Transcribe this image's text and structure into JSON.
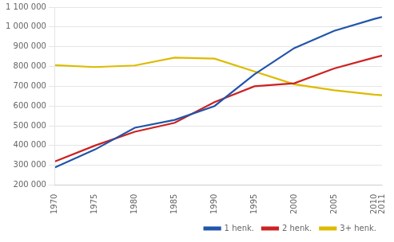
{
  "chart_data": {
    "type": "line",
    "x": [
      1970,
      1975,
      1980,
      1985,
      1990,
      1995,
      2000,
      2005,
      2010,
      2011
    ],
    "series": [
      {
        "name": "1 henk.",
        "color": "#2255aa",
        "values": [
          290000,
          380000,
          490000,
          530000,
          600000,
          760000,
          893000,
          980000,
          1040000,
          1050000
        ]
      },
      {
        "name": "2 henk.",
        "color": "#cc2222",
        "values": [
          320000,
          400000,
          470000,
          515000,
          620000,
          700000,
          715000,
          790000,
          845000,
          855000
        ]
      },
      {
        "name": "3+ henk.",
        "color": "#ddbb00",
        "values": [
          807000,
          797000,
          805000,
          845000,
          840000,
          775000,
          710000,
          680000,
          658000,
          655000
        ]
      }
    ],
    "xlim": [
      1970,
      2011
    ],
    "xticks": [
      1970,
      1975,
      1980,
      1985,
      1990,
      1995,
      2000,
      2005,
      2010,
      2011
    ],
    "ylim": [
      200000,
      1100000
    ],
    "yticks": [
      {
        "value": 200000,
        "label": "200 000"
      },
      {
        "value": 300000,
        "label": "300 000"
      },
      {
        "value": 400000,
        "label": "400 000"
      },
      {
        "value": 500000,
        "label": "500 000"
      },
      {
        "value": 600000,
        "label": "600 000"
      },
      {
        "value": 700000,
        "label": "700 000"
      },
      {
        "value": 800000,
        "label": "800 000"
      },
      {
        "value": 900000,
        "label": "900 000"
      },
      {
        "value": 1000000,
        "label": "1 000 000"
      },
      {
        "value": 1100000,
        "label": "1 100 000"
      }
    ],
    "grid": "y",
    "legend": "lower right"
  }
}
